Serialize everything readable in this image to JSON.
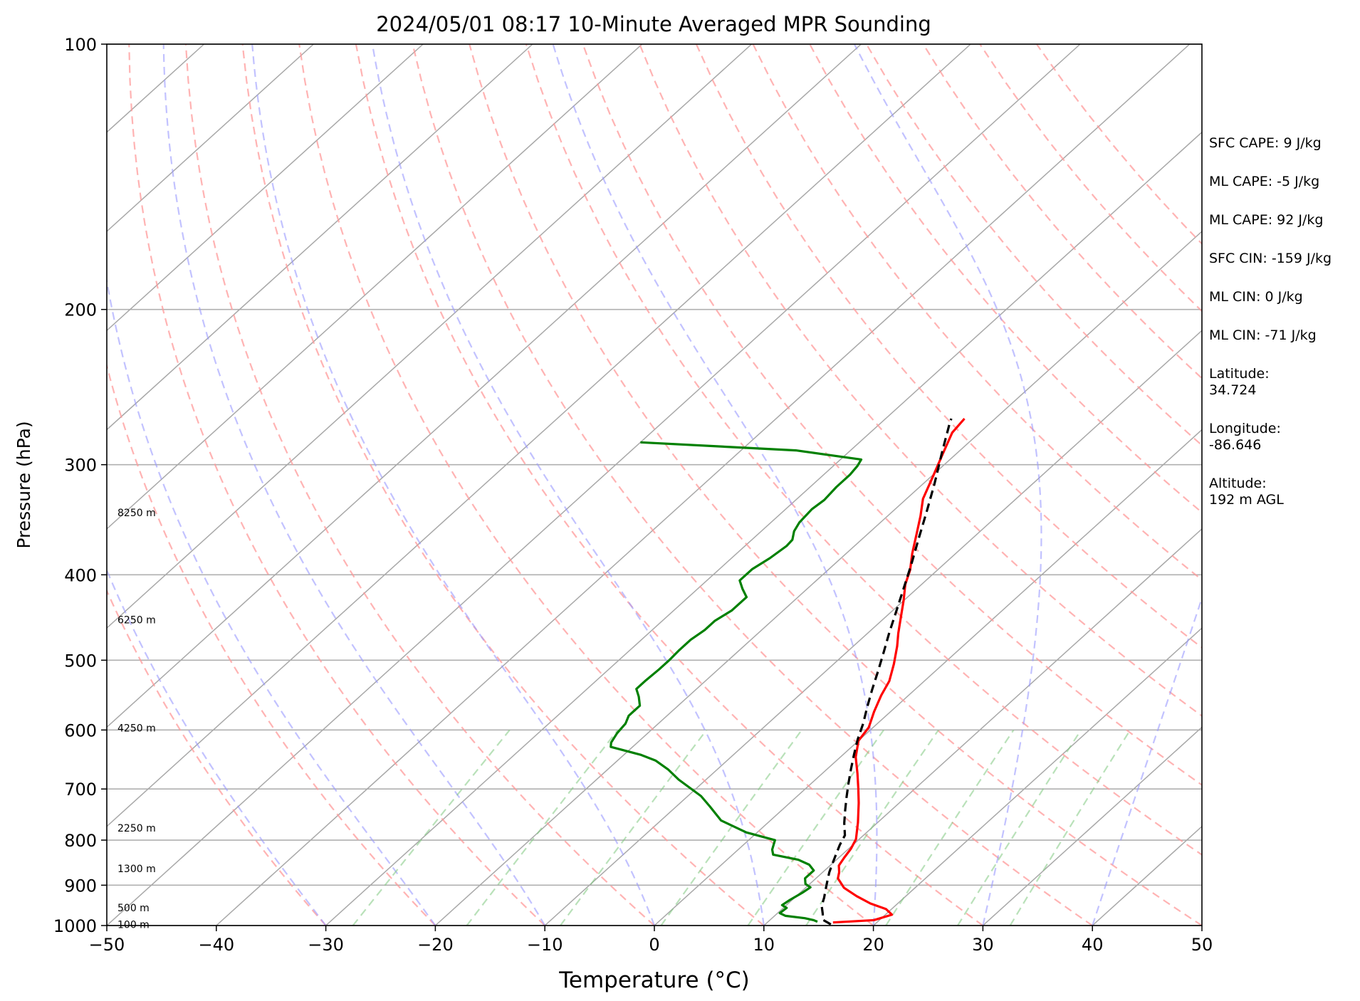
{
  "chart_data": {
    "type": "line",
    "title": "2024/05/01 08:17 10-Minute Averaged MPR Sounding",
    "xlabel": "Temperature (°C)",
    "ylabel": "Pressure (hPa)",
    "xlim": [
      -50,
      50
    ],
    "ylim": [
      1000,
      100
    ],
    "yscale": "log",
    "skew": true,
    "grid": true,
    "x_ticks": [
      -50,
      -40,
      -30,
      -20,
      -10,
      0,
      10,
      20,
      30,
      40,
      50
    ],
    "x_tick_labels": [
      "−50",
      "−40",
      "−30",
      "−20",
      "−10",
      "0",
      "10",
      "20",
      "30",
      "40",
      "50"
    ],
    "y_ticks": [
      1000,
      900,
      800,
      700,
      600,
      500,
      400,
      300,
      200,
      100
    ],
    "y_tick_labels": [
      "1000",
      "900",
      "800",
      "700",
      "600",
      "500",
      "400",
      "300",
      "200",
      "100"
    ],
    "height_labels": [
      {
        "pressure": 997,
        "text": "100 m"
      },
      {
        "pressure": 955,
        "text": "500 m"
      },
      {
        "pressure": 862,
        "text": "1300 m"
      },
      {
        "pressure": 775,
        "text": "2250 m"
      },
      {
        "pressure": 597,
        "text": "4250 m"
      },
      {
        "pressure": 450,
        "text": "6250 m"
      },
      {
        "pressure": 340,
        "text": "8250 m"
      }
    ],
    "series": [
      {
        "name": "",
        "kind": "temperature",
        "color": "#ff0000",
        "points": [
          [
            16.0,
            992
          ],
          [
            19.5,
            986
          ],
          [
            20.6,
            972
          ],
          [
            19.5,
            958
          ],
          [
            17.5,
            944
          ],
          [
            15.5,
            926
          ],
          [
            13.5,
            906
          ],
          [
            12.0,
            884
          ],
          [
            11.5,
            870
          ],
          [
            10.8,
            855
          ],
          [
            10.5,
            838
          ],
          [
            10.2,
            818
          ],
          [
            9.7,
            798
          ],
          [
            8.2,
            764
          ],
          [
            6.3,
            726
          ],
          [
            4.8,
            699
          ],
          [
            3.2,
            672
          ],
          [
            1.4,
            644
          ],
          [
            0.0,
            617
          ],
          [
            -0.4,
            596
          ],
          [
            -1.5,
            572
          ],
          [
            -2.5,
            548
          ],
          [
            -3.2,
            528
          ],
          [
            -4.5,
            505
          ],
          [
            -6.0,
            482
          ],
          [
            -7.2,
            466
          ],
          [
            -8.5,
            448
          ],
          [
            -10.0,
            428
          ],
          [
            -11.5,
            410
          ],
          [
            -12.5,
            395
          ],
          [
            -14.0,
            378
          ],
          [
            -15.5,
            360
          ],
          [
            -17.0,
            343
          ],
          [
            -18.5,
            328
          ],
          [
            -19.8,
            310
          ],
          [
            -21.2,
            292
          ],
          [
            -22.5,
            276
          ],
          [
            -22.8,
            266
          ]
        ]
      },
      {
        "name": "",
        "kind": "dewpoint",
        "color": "#008000",
        "points": [
          [
            14.5,
            990
          ],
          [
            14.0,
            986
          ],
          [
            13.0,
            981
          ],
          [
            11.0,
            975
          ],
          [
            10.2,
            968
          ],
          [
            10.3,
            955
          ],
          [
            9.6,
            948
          ],
          [
            9.8,
            935
          ],
          [
            10.2,
            918
          ],
          [
            10.4,
            905
          ],
          [
            9.6,
            897
          ],
          [
            9.0,
            884
          ],
          [
            9.0,
            866
          ],
          [
            8.0,
            853
          ],
          [
            6.5,
            842
          ],
          [
            3.7,
            831
          ],
          [
            3.1,
            820
          ],
          [
            2.4,
            800
          ],
          [
            -1.0,
            784
          ],
          [
            -4.5,
            760
          ],
          [
            -7.0,
            732
          ],
          [
            -8.8,
            713
          ],
          [
            -12.5,
            683
          ],
          [
            -14.5,
            665
          ],
          [
            -16.5,
            650
          ],
          [
            -18.5,
            640
          ],
          [
            -22.0,
            627
          ],
          [
            -22.4,
            620
          ],
          [
            -22.8,
            605
          ],
          [
            -23.0,
            590
          ],
          [
            -23.5,
            578
          ],
          [
            -23.5,
            563
          ],
          [
            -24.5,
            550
          ],
          [
            -25.5,
            539
          ],
          [
            -25.5,
            527
          ],
          [
            -25.4,
            512
          ],
          [
            -25.4,
            500
          ],
          [
            -25.5,
            487
          ],
          [
            -25.5,
            474
          ],
          [
            -25.2,
            462
          ],
          [
            -25.2,
            451
          ],
          [
            -24.7,
            439
          ],
          [
            -24.7,
            424
          ],
          [
            -25.9,
            415
          ],
          [
            -27.0,
            406
          ],
          [
            -27.0,
            394
          ],
          [
            -26.5,
            383
          ],
          [
            -26.2,
            371
          ],
          [
            -26.3,
            365
          ],
          [
            -27.0,
            357
          ],
          [
            -27.4,
            349
          ],
          [
            -27.6,
            337
          ],
          [
            -27.4,
            329
          ],
          [
            -27.6,
            318
          ],
          [
            -27.6,
            308
          ],
          [
            -27.8,
            301
          ],
          [
            -28.1,
            296
          ],
          [
            -35.0,
            289
          ],
          [
            -50.0,
            283
          ]
        ]
      },
      {
        "name": "",
        "kind": "parcel",
        "color": "#000000",
        "points": [
          [
            16.0,
            997
          ],
          [
            14.8,
            985
          ],
          [
            14.2,
            970
          ],
          [
            13.3,
            950
          ],
          [
            12.7,
            930
          ],
          [
            12.0,
            910
          ],
          [
            11.3,
            890
          ],
          [
            10.6,
            870
          ],
          [
            10.0,
            850
          ],
          [
            9.4,
            830
          ],
          [
            8.8,
            810
          ],
          [
            8.3,
            790
          ],
          [
            7.0,
            765
          ],
          [
            5.8,
            740
          ],
          [
            4.6,
            715
          ],
          [
            3.4,
            690
          ],
          [
            2.2,
            665
          ],
          [
            1.0,
            640
          ],
          [
            -0.2,
            615
          ],
          [
            -1.3,
            590
          ],
          [
            -2.6,
            565
          ],
          [
            -3.9,
            540
          ],
          [
            -5.2,
            515
          ],
          [
            -6.6,
            490
          ],
          [
            -8.1,
            465
          ],
          [
            -9.6,
            440
          ],
          [
            -11.2,
            415
          ],
          [
            -12.9,
            390
          ],
          [
            -14.8,
            365
          ],
          [
            -16.8,
            340
          ],
          [
            -19.0,
            315
          ],
          [
            -21.5,
            290
          ],
          [
            -23.6,
            270
          ],
          [
            -24.0,
            266
          ]
        ]
      }
    ],
    "dry_adiabats": [
      -30,
      -20,
      -10,
      0,
      10,
      20,
      30,
      40,
      50,
      60,
      70,
      80,
      90,
      100,
      110,
      120,
      130,
      140,
      150
    ],
    "moist_adiabats": [
      -30,
      -20,
      -10,
      0,
      10,
      20,
      30,
      40,
      50
    ],
    "mixing_ratios": [
      0.4,
      1,
      2,
      4,
      7,
      10,
      16,
      24,
      32
    ],
    "stats": [
      "SFC CAPE: 9 J/kg",
      "ML CAPE: -5 J/kg",
      "ML CAPE: 92 J/kg",
      "SFC CIN: -159 J/kg",
      "ML CIN: 0 J/kg",
      "ML CIN: -71 J/kg"
    ],
    "location": [
      {
        "label": "Latitude:",
        "value": "34.724"
      },
      {
        "label": "Longitude:",
        "value": "-86.646"
      },
      {
        "label": "Altitude:",
        "value": "192 m AGL"
      }
    ]
  }
}
